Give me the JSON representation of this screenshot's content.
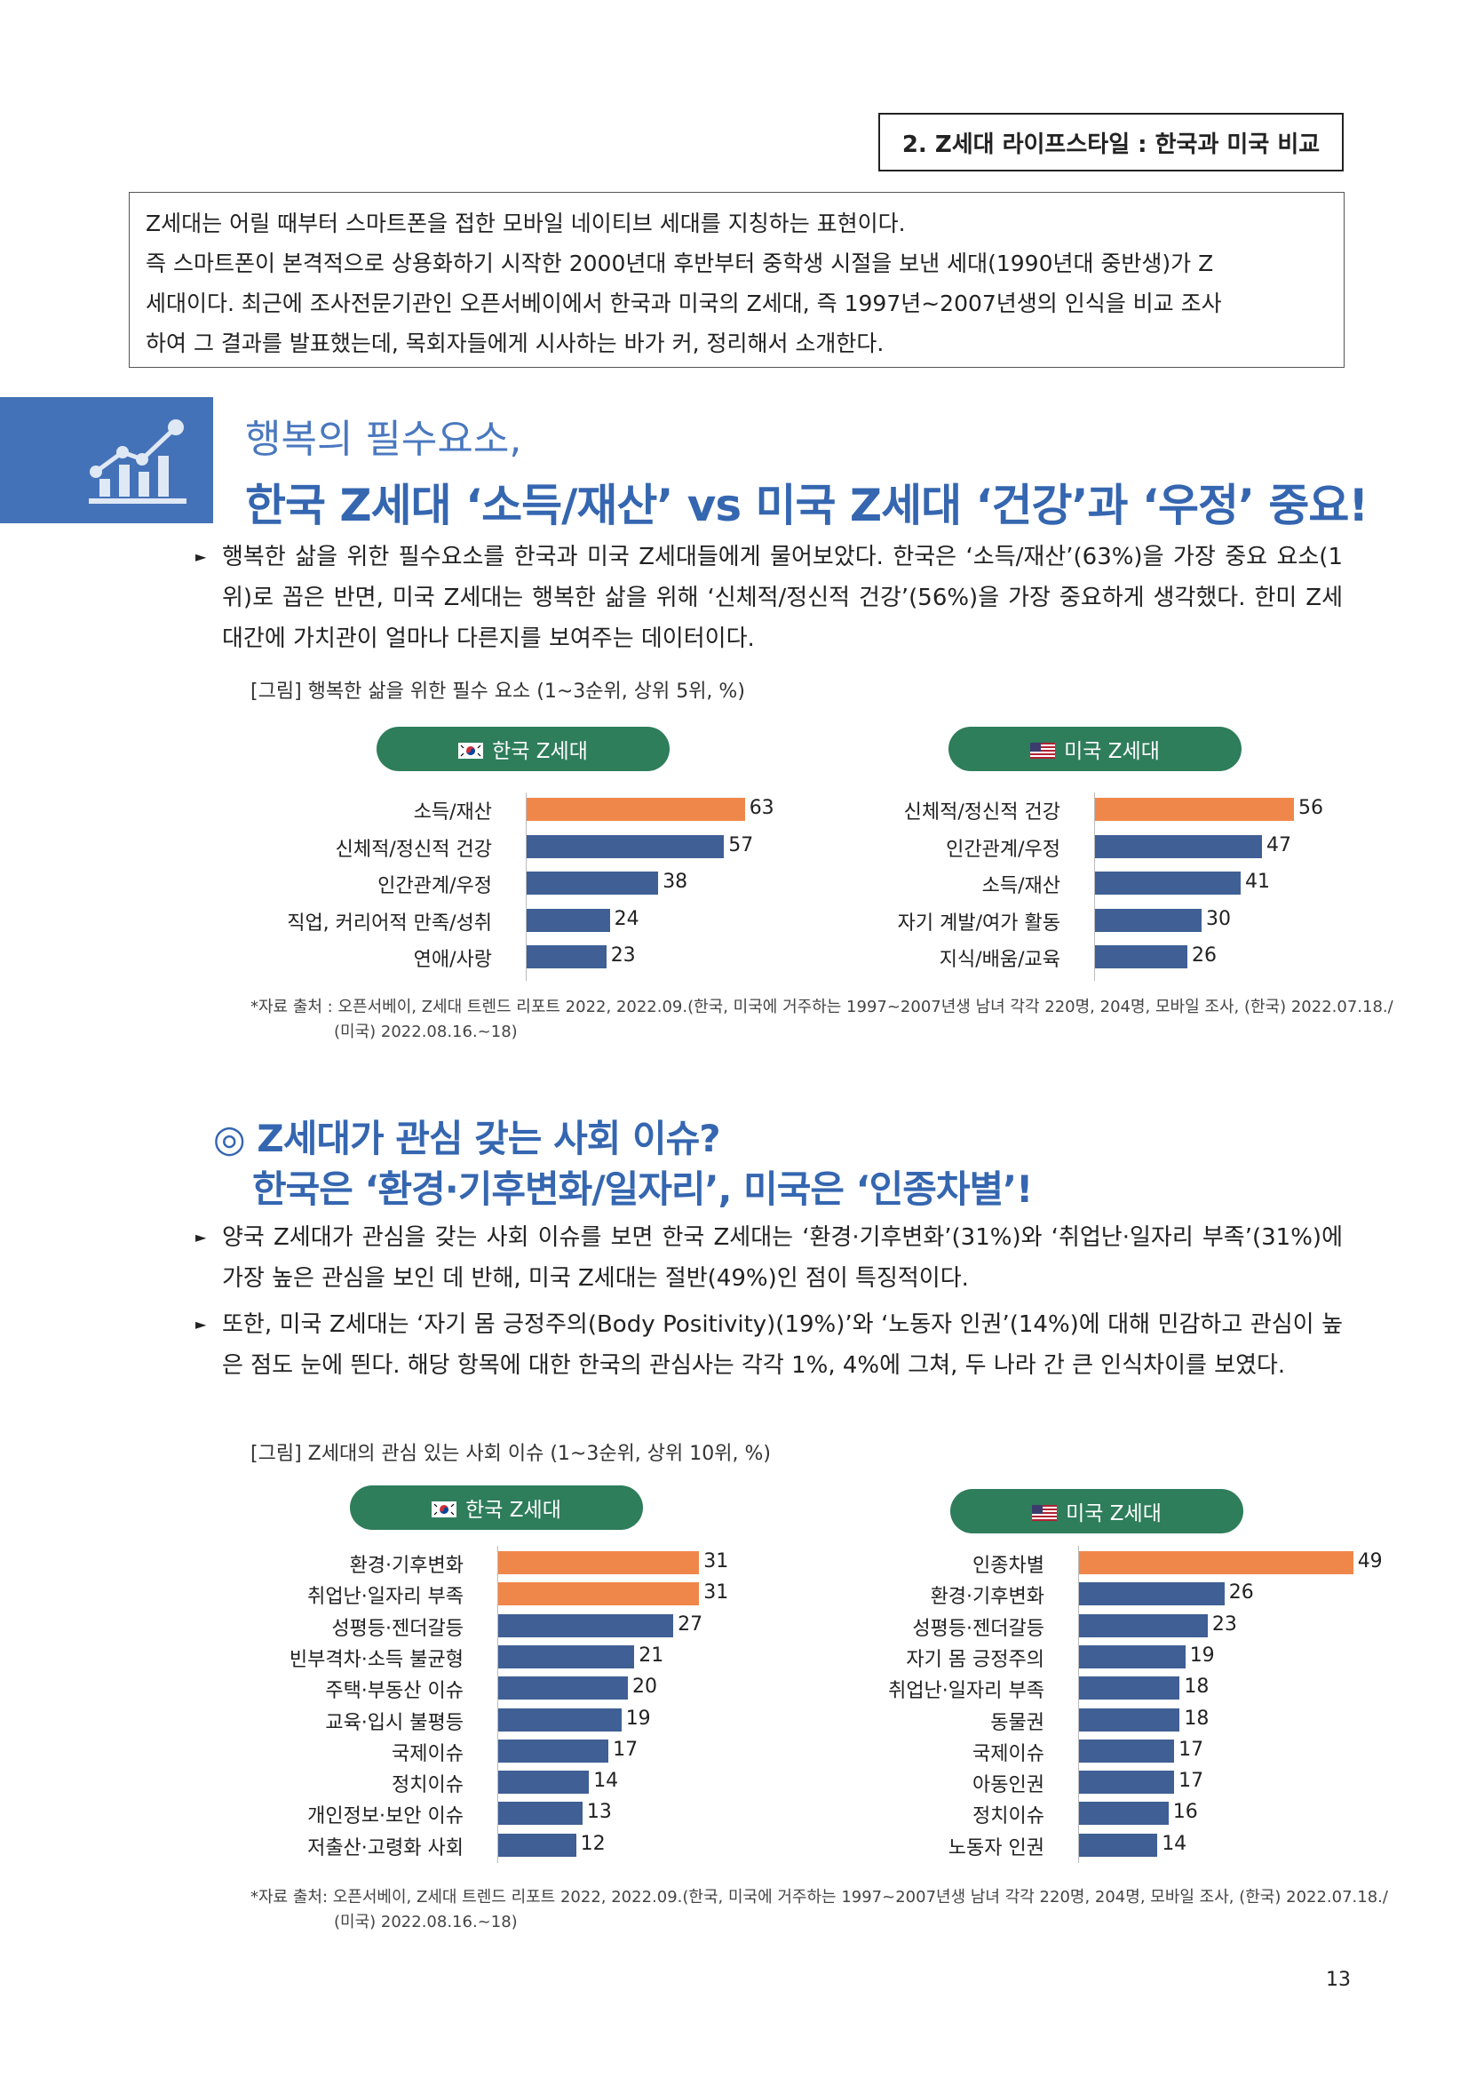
{
  "section_tag": "2. Z세대 라이프스타일 : 한국과 미국 비교",
  "intro": [
    "Z세대는 어릴 때부터 스마트폰을 접한 모바일 네이티브 세대를 지칭하는 표현이다.",
    "즉 스마트폰이 본격적으로 상용화하기 시작한 2000년대 후반부터 중학생 시절을 보낸 세대(1990년대 중반생)가 Z",
    "세대이다. 최근에 조사전문기관인 오픈서베이에서 한국과 미국의 Z세대, 즉 1997년~2007년생의 인식을 비교 조사",
    "하여 그 결과를 발표했는데, 목회자들에게 시사하는 바가 커, 정리해서 소개한다."
  ],
  "section1": {
    "subtitle": "행복의 필수요소,",
    "title": "한국 Z세대 ‘소득/재산’ vs 미국 Z세대 ‘건강’과 ‘우정’ 중요!",
    "paragraph": "행복한 삶을 위한 필수요소를 한국과 미국 Z세대들에게 물어보았다. 한국은 ‘소득/재산’(63%)을 가장 중요 요소(1위)로 꼽은 반면, 미국 Z세대는 행복한 삶을 위해 ‘신체적/정신적 건강’(56%)을 가장 중요하게 생각했다. 한미 Z세대간에 가치관이 얼마나 다른지를 보여주는 데이터이다.",
    "figure_caption": "[그림] 행복한 삶을 위한 필수 요소 (1~3순위, 상위 5위, %)",
    "source_line1": "*자료 출처 : 오픈서베이, Z세대 트렌드 리포트 2022, 2022.09.(한국, 미국에 거주하는 1997~2007년생 남녀 각각 220명, 204명, 모바일 조사, (한국) 2022.07.18./",
    "source_line2": "(미국) 2022.08.16.~18)"
  },
  "section2": {
    "title_line1": "◎ Z세대가 관심 갖는 사회 이슈?",
    "title_line2": "한국은 ‘환경·기후변화/일자리’, 미국은 ‘인종차별’!",
    "paragraph1": "양국 Z세대가 관심을 갖는 사회 이슈를 보면 한국 Z세대는 ‘환경·기후변화’(31%)와 ‘취업난·일자리 부족’(31%)에 가장 높은 관심을 보인 데 반해, 미국 Z세대는 절반(49%)인 점이 특징적이다.",
    "paragraph2": "또한, 미국 Z세대는 ‘자기 몸 긍정주의(Body Positivity)(19%)’와 ‘노동자 인권’(14%)에 대해 민감하고 관심이 높은 점도 눈에 띈다. 해당 항목에 대한 한국의 관심사는 각각 1%, 4%에 그쳐, 두 나라 간 큰 인식차이를 보였다.",
    "figure_caption": "[그림] Z세대의 관심 있는 사회 이슈 (1~3순위, 상위 10위, %)",
    "source_line1": "*자료 출처:  오픈서베이, Z세대 트렌드 리포트 2022, 2022.09.(한국, 미국에 거주하는 1997~2007년생 남녀 각각 220명, 204명, 모바일 조사, (한국) 2022.07.18./",
    "source_line2": "(미국) 2022.08.16.~18)"
  },
  "colors": {
    "highlight": "#f0874a",
    "normal": "#3f5f95",
    "pill": "#2e7d5b",
    "heading": "#3566b0"
  },
  "chart_data": [
    {
      "type": "bar",
      "title": "한국 Z세대",
      "categories": [
        "소득/재산",
        "신체적/정신적 건강",
        "인간관계/우정",
        "직업, 커리어적 만족/성취",
        "연애/사랑"
      ],
      "values": [
        63,
        57,
        38,
        24,
        23
      ],
      "highlight": [
        true,
        false,
        false,
        false,
        false
      ]
    },
    {
      "type": "bar",
      "title": "미국 Z세대",
      "categories": [
        "신체적/정신적 건강",
        "인간관계/우정",
        "소득/재산",
        "자기 계발/여가 활동",
        "지식/배움/교육"
      ],
      "values": [
        56,
        47,
        41,
        30,
        26
      ],
      "highlight": [
        true,
        false,
        false,
        false,
        false
      ]
    },
    {
      "type": "bar",
      "title": "한국 Z세대",
      "categories": [
        "환경·기후변화",
        "취업난·일자리 부족",
        "성평등·젠더갈등",
        "빈부격차·소득 불균형",
        "주택·부동산 이슈",
        "교육·입시 불평등",
        "국제이슈",
        "정치이슈",
        "개인정보·보안 이슈",
        "저출산·고령화 사회"
      ],
      "values": [
        31,
        31,
        27,
        21,
        20,
        19,
        17,
        14,
        13,
        12
      ],
      "highlight": [
        true,
        true,
        false,
        false,
        false,
        false,
        false,
        false,
        false,
        false
      ]
    },
    {
      "type": "bar",
      "title": "미국 Z세대",
      "categories": [
        "인종차별",
        "환경·기후변화",
        "성평등·젠더갈등",
        "자기 몸 긍정주의",
        "취업난·일자리 부족",
        "동물권",
        "국제이슈",
        "아동인권",
        "정치이슈",
        "노동자 인권"
      ],
      "values": [
        49,
        26,
        23,
        19,
        18,
        18,
        17,
        17,
        16,
        14
      ],
      "highlight": [
        true,
        false,
        false,
        false,
        false,
        false,
        false,
        false,
        false,
        false
      ]
    }
  ],
  "page_number": "13"
}
